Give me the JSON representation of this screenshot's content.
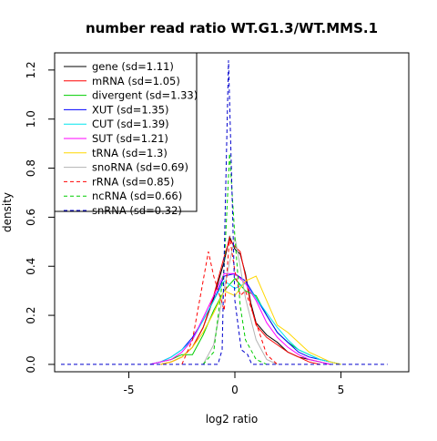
{
  "chart_data": {
    "type": "line",
    "title": "number read ratio WT.G1.3/WT.MMS.1",
    "xlabel": "log2 ratio",
    "ylabel": "density",
    "xlim": [
      -8.5,
      8.2
    ],
    "ylim": [
      -0.03,
      1.27
    ],
    "x_ticks": [
      -5,
      0,
      5
    ],
    "y_ticks": [
      0.0,
      0.2,
      0.4,
      0.6,
      0.8,
      1.0,
      1.2
    ],
    "x_tick_labels": [
      "-5",
      "0",
      "5"
    ],
    "y_tick_labels": [
      "0.0",
      "0.2",
      "0.4",
      "0.6",
      "0.8",
      "1.0",
      "1.2"
    ],
    "grid": false,
    "legend_position": "top-left",
    "series": [
      {
        "name": "gene (sd=1.11)",
        "color": "#000000",
        "dash": "solid",
        "x": [
          -3.5,
          -3.0,
          -2.5,
          -2.0,
          -1.5,
          -1.0,
          -0.5,
          -0.25,
          0.0,
          0.25,
          0.5,
          0.75,
          1.0,
          1.5,
          2.0,
          2.5,
          3.0,
          3.5,
          4.0,
          4.5
        ],
        "y": [
          0.0,
          0.01,
          0.03,
          0.07,
          0.15,
          0.27,
          0.42,
          0.52,
          0.47,
          0.45,
          0.37,
          0.25,
          0.17,
          0.12,
          0.09,
          0.05,
          0.03,
          0.02,
          0.01,
          0.0
        ]
      },
      {
        "name": "mRNA (sd=1.05)",
        "color": "#ff0000",
        "dash": "solid",
        "x": [
          -3.5,
          -3.0,
          -2.5,
          -2.0,
          -1.5,
          -1.0,
          -0.5,
          -0.25,
          0.0,
          0.25,
          0.5,
          0.75,
          1.0,
          1.5,
          2.0,
          2.5,
          3.0,
          3.5,
          4.0
        ],
        "y": [
          0.0,
          0.01,
          0.03,
          0.07,
          0.15,
          0.28,
          0.44,
          0.51,
          0.48,
          0.46,
          0.36,
          0.24,
          0.16,
          0.11,
          0.08,
          0.05,
          0.03,
          0.01,
          0.0
        ]
      },
      {
        "name": "divergent (sd=1.33)",
        "color": "#00cd00",
        "dash": "solid",
        "x": [
          -4.0,
          -3.5,
          -3.0,
          -2.5,
          -2.0,
          -1.5,
          -1.0,
          -0.5,
          0.0,
          0.5,
          1.0,
          1.5,
          2.0,
          2.5,
          3.0,
          3.5,
          4.0,
          4.5,
          5.0
        ],
        "y": [
          0.0,
          0.01,
          0.02,
          0.04,
          0.04,
          0.12,
          0.22,
          0.3,
          0.35,
          0.3,
          0.28,
          0.2,
          0.13,
          0.09,
          0.06,
          0.04,
          0.02,
          0.01,
          0.0
        ]
      },
      {
        "name": "XUT (sd=1.35)",
        "color": "#0000ff",
        "dash": "solid",
        "x": [
          -4.0,
          -3.5,
          -3.0,
          -2.5,
          -2.0,
          -1.5,
          -1.0,
          -0.5,
          0.0,
          0.5,
          1.0,
          1.5,
          2.0,
          2.5,
          3.0,
          3.5,
          4.0,
          4.5,
          5.0
        ],
        "y": [
          0.0,
          0.01,
          0.03,
          0.06,
          0.11,
          0.18,
          0.26,
          0.36,
          0.37,
          0.34,
          0.27,
          0.2,
          0.13,
          0.09,
          0.05,
          0.03,
          0.02,
          0.01,
          0.0
        ]
      },
      {
        "name": "CUT (sd=1.39)",
        "color": "#00e5ee",
        "dash": "solid",
        "x": [
          -4.0,
          -3.5,
          -3.0,
          -2.5,
          -2.0,
          -1.5,
          -1.0,
          -0.5,
          0.0,
          0.5,
          1.0,
          1.5,
          2.0,
          2.5,
          3.0,
          3.5,
          4.0,
          4.5,
          5.0
        ],
        "y": [
          0.0,
          0.01,
          0.03,
          0.06,
          0.1,
          0.18,
          0.26,
          0.34,
          0.31,
          0.33,
          0.27,
          0.21,
          0.15,
          0.1,
          0.06,
          0.04,
          0.02,
          0.01,
          0.0
        ]
      },
      {
        "name": "SUT (sd=1.21)",
        "color": "#ff00ff",
        "dash": "solid",
        "x": [
          -4.0,
          -3.5,
          -3.0,
          -2.5,
          -2.0,
          -1.5,
          -1.0,
          -0.5,
          0.0,
          0.5,
          1.0,
          1.5,
          2.0,
          2.5,
          3.0,
          3.5,
          4.0,
          4.5
        ],
        "y": [
          0.0,
          0.01,
          0.02,
          0.05,
          0.1,
          0.19,
          0.28,
          0.37,
          0.37,
          0.33,
          0.26,
          0.17,
          0.11,
          0.07,
          0.04,
          0.02,
          0.01,
          0.0
        ]
      },
      {
        "name": "tRNA (sd=1.3)",
        "color": "#ffd700",
        "dash": "solid",
        "x": [
          -3.5,
          -3.0,
          -2.5,
          -2.0,
          -1.5,
          -1.0,
          -0.5,
          0.0,
          0.5,
          1.0,
          1.5,
          2.0,
          2.5,
          3.0,
          3.5,
          4.0,
          4.5,
          5.0
        ],
        "y": [
          0.0,
          0.01,
          0.03,
          0.07,
          0.13,
          0.21,
          0.3,
          0.28,
          0.34,
          0.36,
          0.26,
          0.16,
          0.13,
          0.09,
          0.05,
          0.03,
          0.01,
          0.0
        ]
      },
      {
        "name": "snoRNA (sd=0.69)",
        "color": "#b3b3b3",
        "dash": "solid",
        "x": [
          -1.5,
          -1.0,
          -0.5,
          0.0,
          0.25,
          0.5,
          1.0,
          1.5,
          2.0
        ],
        "y": [
          0.0,
          0.08,
          0.31,
          0.52,
          0.4,
          0.27,
          0.1,
          0.02,
          0.0
        ]
      },
      {
        "name": "rRNA (sd=0.85)",
        "color": "#ff0000",
        "dash": "dashed",
        "x": [
          -2.5,
          -2.0,
          -1.5,
          -1.25,
          -1.0,
          -0.5,
          -0.25,
          0.0,
          0.25,
          0.5,
          1.0,
          1.5,
          2.0
        ],
        "y": [
          0.0,
          0.1,
          0.34,
          0.46,
          0.36,
          0.22,
          0.52,
          0.38,
          0.28,
          0.3,
          0.17,
          0.04,
          0.0
        ]
      },
      {
        "name": "ncRNA (sd=0.66)",
        "color": "#00cd00",
        "dash": "dashed",
        "x": [
          -1.5,
          -1.0,
          -0.5,
          -0.25,
          0.0,
          0.25,
          0.5,
          1.0,
          1.5
        ],
        "y": [
          0.0,
          0.05,
          0.4,
          0.86,
          0.52,
          0.24,
          0.1,
          0.02,
          0.0
        ]
      },
      {
        "name": "snRNA (sd=0.32)",
        "color": "#0000cd",
        "dash": "dashed",
        "x": [
          -8.2,
          -0.8,
          -0.6,
          -0.3,
          0.0,
          0.3,
          0.6,
          0.8,
          7.2
        ],
        "y": [
          0.0,
          0.0,
          0.06,
          1.24,
          0.26,
          0.06,
          0.04,
          0.0,
          0.0
        ]
      }
    ]
  }
}
